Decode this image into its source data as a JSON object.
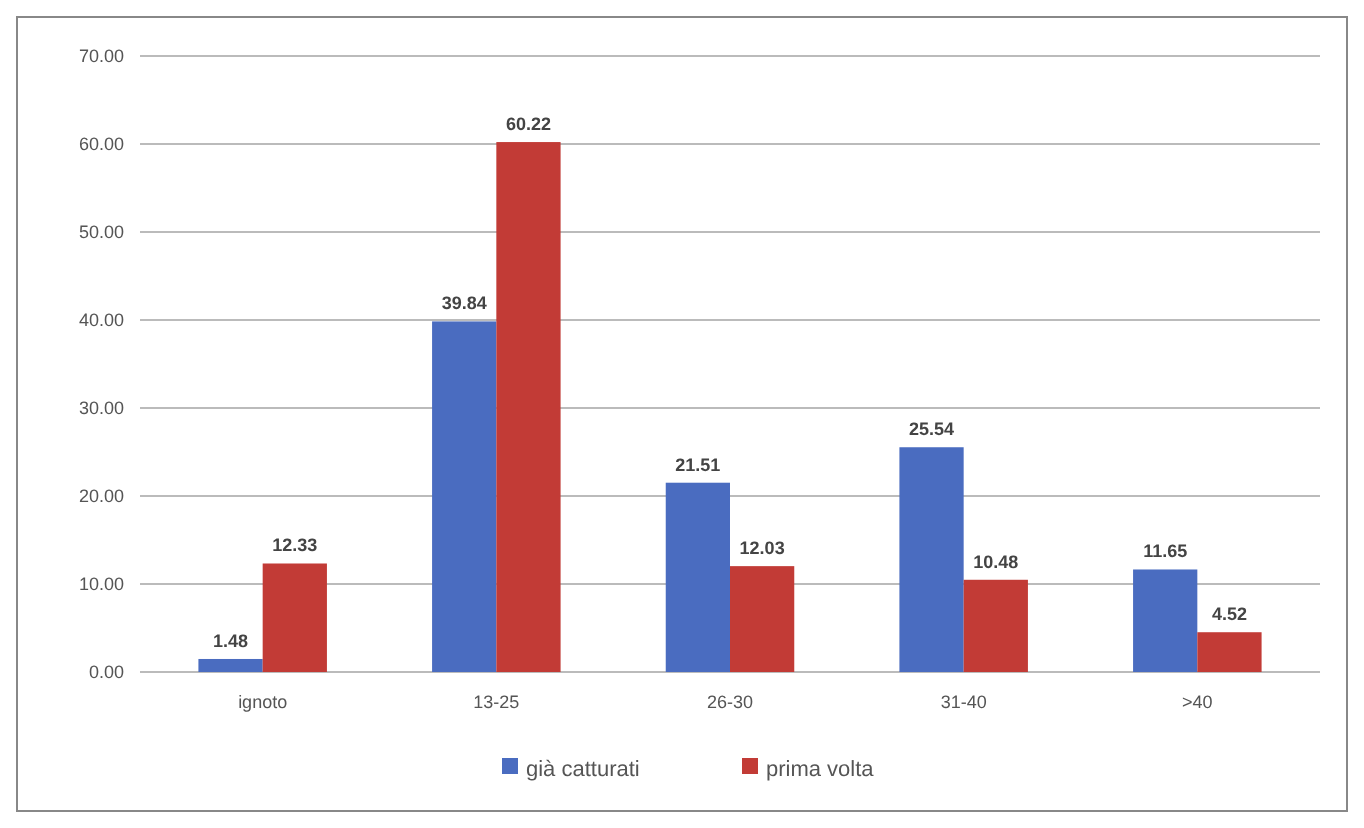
{
  "chart_data": {
    "type": "bar",
    "categories": [
      "ignoto",
      "13-25",
      "26-30",
      "31-40",
      ">40"
    ],
    "series": [
      {
        "name": "già catturati",
        "color": "#4a6cc0",
        "values": [
          1.48,
          39.84,
          21.51,
          25.54,
          11.65
        ]
      },
      {
        "name": "prima volta",
        "color": "#c23b36",
        "values": [
          12.33,
          60.22,
          12.03,
          10.48,
          4.52
        ]
      }
    ],
    "ylim": [
      0,
      70
    ],
    "yticks": [
      {
        "value": 0,
        "label": "0.00"
      },
      {
        "value": 10,
        "label": "10.00"
      },
      {
        "value": 20,
        "label": "20.00"
      },
      {
        "value": 30,
        "label": "30.00"
      },
      {
        "value": 40,
        "label": "40.00"
      },
      {
        "value": 50,
        "label": "50.00"
      },
      {
        "value": 60,
        "label": "60.00"
      },
      {
        "value": 70,
        "label": "70.00"
      }
    ],
    "grid": "y",
    "legend": "bottom",
    "data_labels": true
  }
}
